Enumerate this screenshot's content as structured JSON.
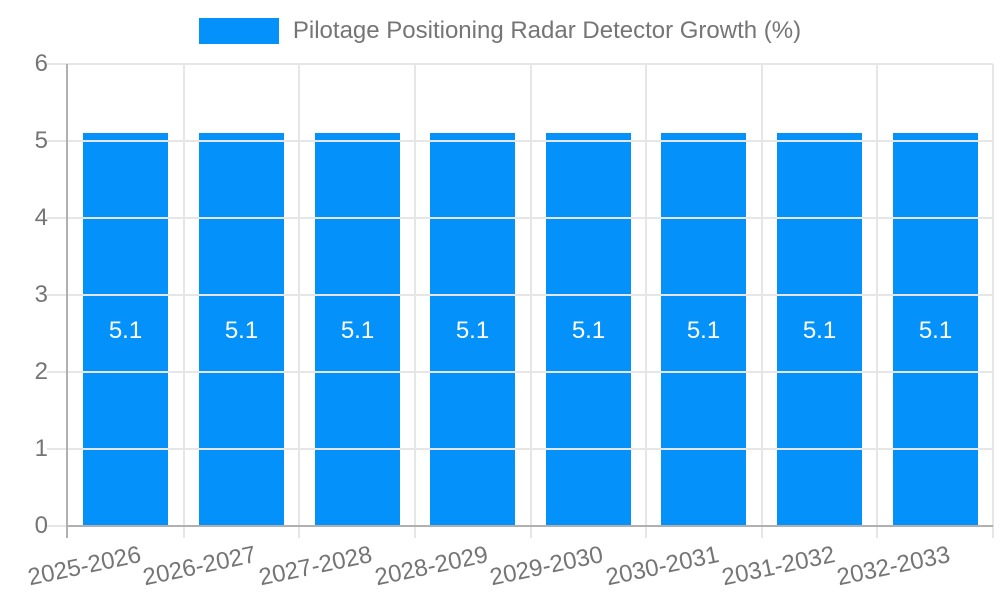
{
  "chart_data": {
    "type": "bar",
    "title": "Pilotage Positioning Radar Detector Growth (%)",
    "categories": [
      "2025-2026",
      "2026-2027",
      "2027-2028",
      "2028-2029",
      "2029-2030",
      "2030-2031",
      "2031-2032",
      "2032-2033"
    ],
    "values": [
      5.1,
      5.1,
      5.1,
      5.1,
      5.1,
      5.1,
      5.1,
      5.1
    ],
    "bar_labels": [
      "5.1",
      "5.1",
      "5.1",
      "5.1",
      "5.1",
      "5.1",
      "5.1",
      "5.1"
    ],
    "ytick_labels": [
      "0",
      "1",
      "2",
      "3",
      "4",
      "5",
      "6"
    ],
    "xlabel": "",
    "ylabel": "",
    "ylim": [
      0,
      6
    ],
    "ytick_step": 1,
    "grid": true,
    "legend_position": "top",
    "colors": {
      "bar": "#0591fa",
      "text": "#757575",
      "grid": "#e6e6e6",
      "axis": "#b0b0b0",
      "bar_label": "#ffffff"
    }
  }
}
